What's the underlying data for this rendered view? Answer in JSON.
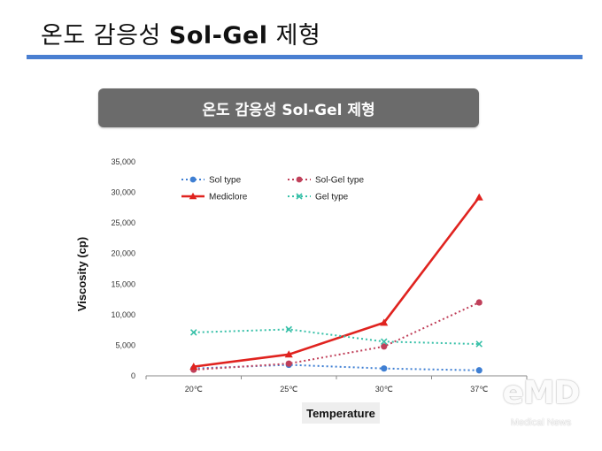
{
  "slide": {
    "title_korean": "온도 감응성 ",
    "title_latin": "Sol-Gel",
    "title_suffix": " 제형",
    "banner": "온도 감응성 Sol-Gel 제형"
  },
  "watermark": {
    "logo": "eMD",
    "sub": "Medical News"
  },
  "colors": {
    "title_rule": "#4a7fd1",
    "banner_bg": "#6b6b6b",
    "sol": "#3f7fd3",
    "solgel": "#c0405a",
    "mediclore": "#e0231f",
    "gel": "#37c0a8"
  },
  "chart_data": {
    "type": "line",
    "title": "",
    "xlabel": "Temperature",
    "ylabel": "Viscosity (cp)",
    "categories": [
      "20℃",
      "25℃",
      "30℃",
      "37℃"
    ],
    "ylim": [
      0,
      35000
    ],
    "yticks": [
      "0",
      "5,000",
      "10,000",
      "15,000",
      "20,000",
      "25,000",
      "30,000",
      "35,000"
    ],
    "ytick_values": [
      0,
      5000,
      10000,
      15000,
      20000,
      25000,
      30000,
      35000
    ],
    "grid": false,
    "legend_position": "top-left",
    "series": [
      {
        "name": "Sol type",
        "values": [
          1200,
          1800,
          1200,
          900
        ],
        "color": "#3f7fd3",
        "style": "dotted",
        "marker": "circle"
      },
      {
        "name": "Sol-Gel type",
        "values": [
          1000,
          2000,
          4800,
          12000
        ],
        "color": "#c0405a",
        "style": "dotted",
        "marker": "circle"
      },
      {
        "name": "Mediclore",
        "values": [
          1500,
          3500,
          8700,
          29200
        ],
        "color": "#e0231f",
        "style": "solid",
        "marker": "triangle"
      },
      {
        "name": "Gel type",
        "values": [
          7100,
          7600,
          5600,
          5200
        ],
        "color": "#37c0a8",
        "style": "dotted",
        "marker": "x"
      }
    ]
  }
}
